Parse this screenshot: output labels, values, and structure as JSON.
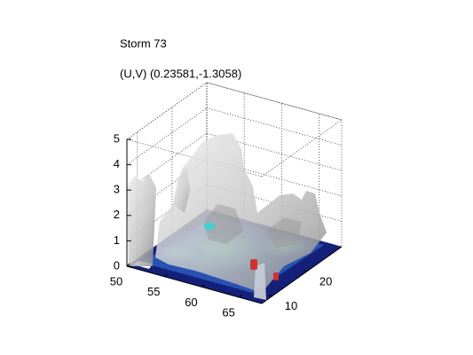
{
  "chart_data": {
    "type": "isosurface3d",
    "title": "Storm 73",
    "subtitle": "(U,V) (0.23581,-1.3058)",
    "xlim": [
      50,
      68
    ],
    "ylim": [
      7,
      30
    ],
    "zlim": [
      0,
      5
    ],
    "xticks": [
      50,
      55,
      60,
      65
    ],
    "yticks": [
      10,
      20
    ],
    "zticks": [
      0,
      1,
      2,
      3,
      4,
      5
    ],
    "grid": true
  }
}
